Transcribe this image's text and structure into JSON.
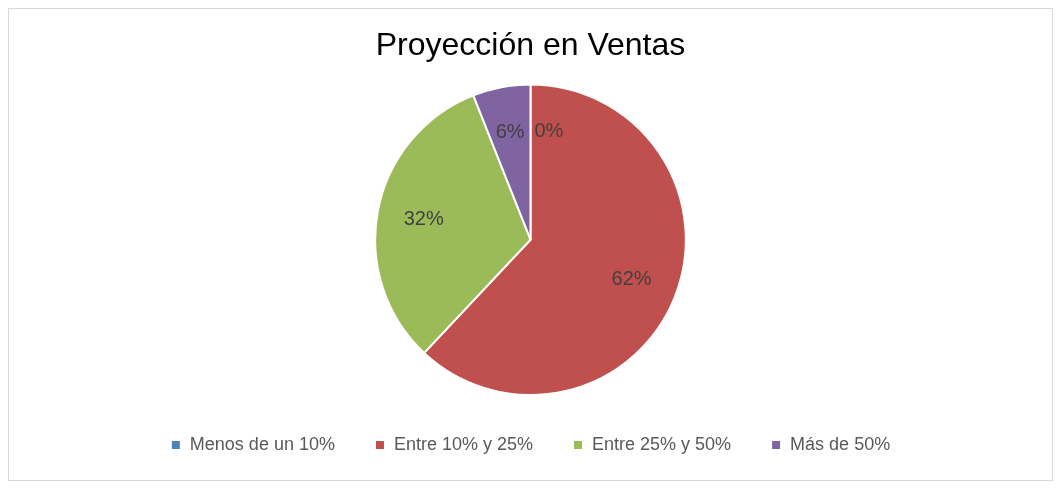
{
  "chart_data": {
    "type": "pie",
    "title": "Proyección en Ventas",
    "categories": [
      "Menos de un 10%",
      "Entre 10% y 25%",
      "Entre 25% y 50%",
      "Más de 50%"
    ],
    "values": [
      0,
      62,
      32,
      6
    ],
    "colors": [
      "#4f81bd",
      "#c0504d",
      "#9bbb59",
      "#8064a2"
    ],
    "value_labels": [
      "0%",
      "62%",
      "32%",
      "6%"
    ],
    "legend": "bottom"
  }
}
